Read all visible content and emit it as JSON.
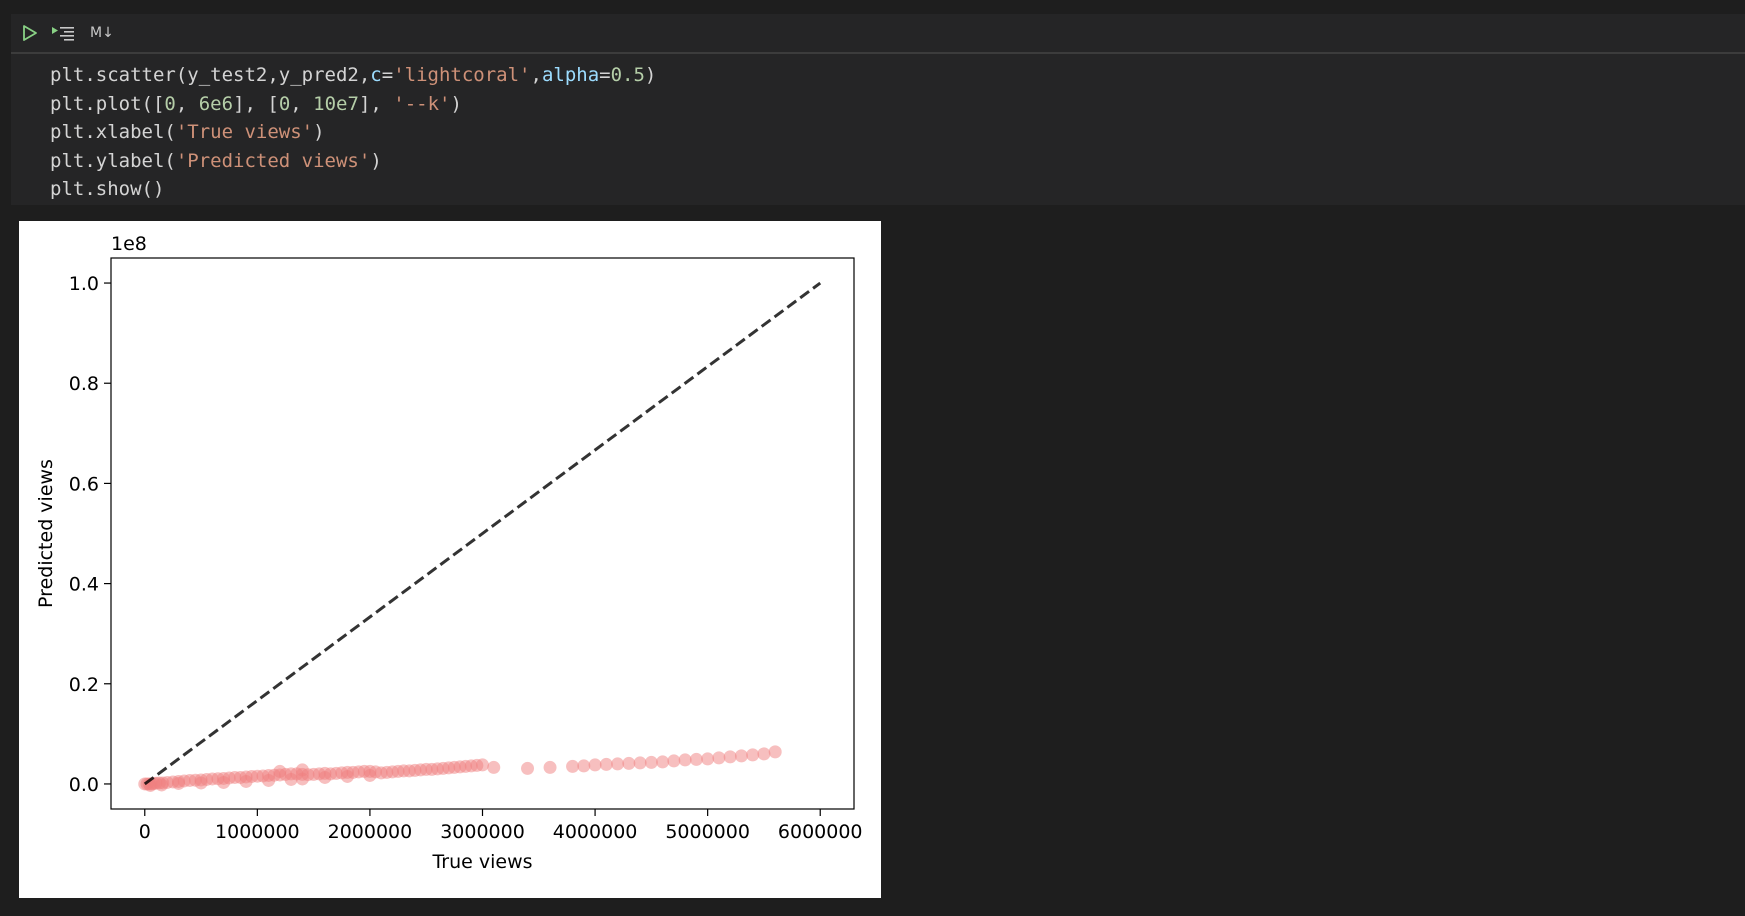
{
  "toolbar": {
    "run_icon": "play-icon",
    "run_all_icon": "run-below-icon",
    "markdown_label": "M↓"
  },
  "code": {
    "lines": [
      [
        {
          "t": "plt.scatter(y_test2,y_pred2,"
        },
        {
          "t": "c",
          "c": "kw"
        },
        {
          "t": "="
        },
        {
          "t": "'lightcoral'",
          "c": "str"
        },
        {
          "t": ","
        },
        {
          "t": "alpha",
          "c": "kw"
        },
        {
          "t": "="
        },
        {
          "t": "0.5",
          "c": "num"
        },
        {
          "t": ")"
        }
      ],
      [
        {
          "t": "plt.plot(["
        },
        {
          "t": "0",
          "c": "num"
        },
        {
          "t": ", "
        },
        {
          "t": "6e6",
          "c": "num"
        },
        {
          "t": "], ["
        },
        {
          "t": "0",
          "c": "num"
        },
        {
          "t": ", "
        },
        {
          "t": "10e7",
          "c": "num"
        },
        {
          "t": "], "
        },
        {
          "t": "'--k'",
          "c": "str"
        },
        {
          "t": ")"
        }
      ],
      [
        {
          "t": "plt.xlabel("
        },
        {
          "t": "'True views'",
          "c": "str"
        },
        {
          "t": ")"
        }
      ],
      [
        {
          "t": "plt.ylabel("
        },
        {
          "t": "'Predicted views'",
          "c": "str"
        },
        {
          "t": ")"
        }
      ],
      [
        {
          "t": "plt.show()"
        }
      ]
    ]
  },
  "colors": {
    "scatter": "#f08080",
    "line": "#000000"
  },
  "chart_data": {
    "type": "scatter",
    "xlabel": "True views",
    "ylabel": "Predicted views",
    "y_offset_label": "1e8",
    "xlim": [
      -300000,
      6300000
    ],
    "ylim": [
      -5000000,
      105000000
    ],
    "xticks": [
      0,
      1000000,
      2000000,
      3000000,
      4000000,
      5000000,
      6000000
    ],
    "xtick_labels": [
      "0",
      "1000000",
      "2000000",
      "3000000",
      "4000000",
      "5000000",
      "6000000"
    ],
    "yticks": [
      0,
      20000000,
      40000000,
      60000000,
      80000000,
      100000000
    ],
    "ytick_labels": [
      "0.0",
      "0.2",
      "0.4",
      "0.6",
      "0.8",
      "1.0"
    ],
    "reference_line": {
      "x": [
        0,
        6000000
      ],
      "y": [
        0,
        100000000
      ],
      "style": "dashed"
    },
    "points": {
      "x": [
        0,
        20000,
        40000,
        60000,
        80000,
        100000,
        130000,
        160000,
        200000,
        250000,
        300000,
        350000,
        400000,
        450000,
        500000,
        550000,
        600000,
        650000,
        700000,
        750000,
        800000,
        850000,
        900000,
        950000,
        1000000,
        1050000,
        1100000,
        1150000,
        1200000,
        1250000,
        1300000,
        1350000,
        1400000,
        1450000,
        1500000,
        1550000,
        1600000,
        1650000,
        1700000,
        1750000,
        1800000,
        1850000,
        1900000,
        1950000,
        2000000,
        2050000,
        2100000,
        2150000,
        2200000,
        2250000,
        2300000,
        2350000,
        2400000,
        2450000,
        2500000,
        2550000,
        2600000,
        2650000,
        2700000,
        2750000,
        2800000,
        2850000,
        2900000,
        2950000,
        3000000,
        3100000,
        3400000,
        3600000,
        3800000,
        3900000,
        4000000,
        4100000,
        4200000,
        4300000,
        4400000,
        4500000,
        4600000,
        4700000,
        4800000,
        4900000,
        5000000,
        5100000,
        5200000,
        5300000,
        5400000,
        5500000,
        5600000,
        50000,
        150000,
        300000,
        500000,
        700000,
        900000,
        1100000,
        1300000,
        1400000,
        1600000,
        1800000,
        2000000,
        1200000,
        1400000
      ],
      "y": [
        0,
        0,
        0,
        0,
        100000,
        150000,
        200000,
        200000,
        300000,
        400000,
        500000,
        600000,
        700000,
        750000,
        800000,
        900000,
        1000000,
        1050000,
        1100000,
        1200000,
        1300000,
        1300000,
        1400000,
        1500000,
        1550000,
        1600000,
        1700000,
        1750000,
        1800000,
        1900000,
        2000000,
        2000000,
        1900000,
        1850000,
        1900000,
        2000000,
        2100000,
        2000000,
        2100000,
        2200000,
        2300000,
        2300000,
        2400000,
        2500000,
        2500000,
        2400000,
        2200000,
        2300000,
        2400000,
        2500000,
        2600000,
        2600000,
        2700000,
        2800000,
        2900000,
        2900000,
        3000000,
        3100000,
        3200000,
        3300000,
        3400000,
        3500000,
        3600000,
        3700000,
        3800000,
        3300000,
        3100000,
        3300000,
        3500000,
        3600000,
        3800000,
        3900000,
        4000000,
        4100000,
        4200000,
        4300000,
        4400000,
        4600000,
        4800000,
        4900000,
        5000000,
        5200000,
        5400000,
        5600000,
        5800000,
        6000000,
        6400000,
        -300000,
        -200000,
        100000,
        200000,
        300000,
        500000,
        700000,
        900000,
        1000000,
        1300000,
        1500000,
        1700000,
        2500000,
        2800000
      ]
    }
  }
}
